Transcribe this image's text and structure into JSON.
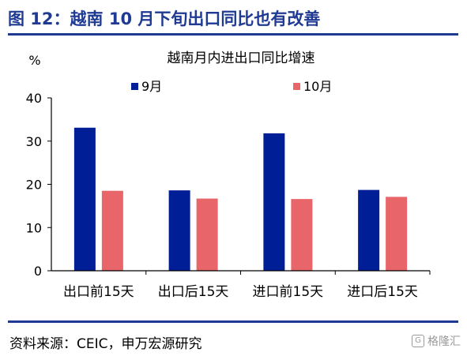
{
  "header": {
    "title": "图 12：越南 10 月下旬出口同比也有改善"
  },
  "footer": {
    "source": "资料来源：CEIC，申万宏源研究",
    "watermark": "格隆汇"
  },
  "chart_data": {
    "type": "bar",
    "title": "越南月内进出口同比增速",
    "ylabel": "%",
    "xlabel": "",
    "ylim": [
      0,
      40
    ],
    "yticks": [
      0,
      10,
      20,
      30,
      40
    ],
    "grid": false,
    "legend_position": "top",
    "categories": [
      "出口前15天",
      "出口后15天",
      "进口前15天",
      "进口后15天"
    ],
    "series": [
      {
        "name": "9月",
        "color": "#001e96",
        "values": [
          33.1,
          18.6,
          31.8,
          18.7
        ]
      },
      {
        "name": "10月",
        "color": "#e8666a",
        "values": [
          18.5,
          16.7,
          16.6,
          17.1
        ]
      }
    ]
  }
}
